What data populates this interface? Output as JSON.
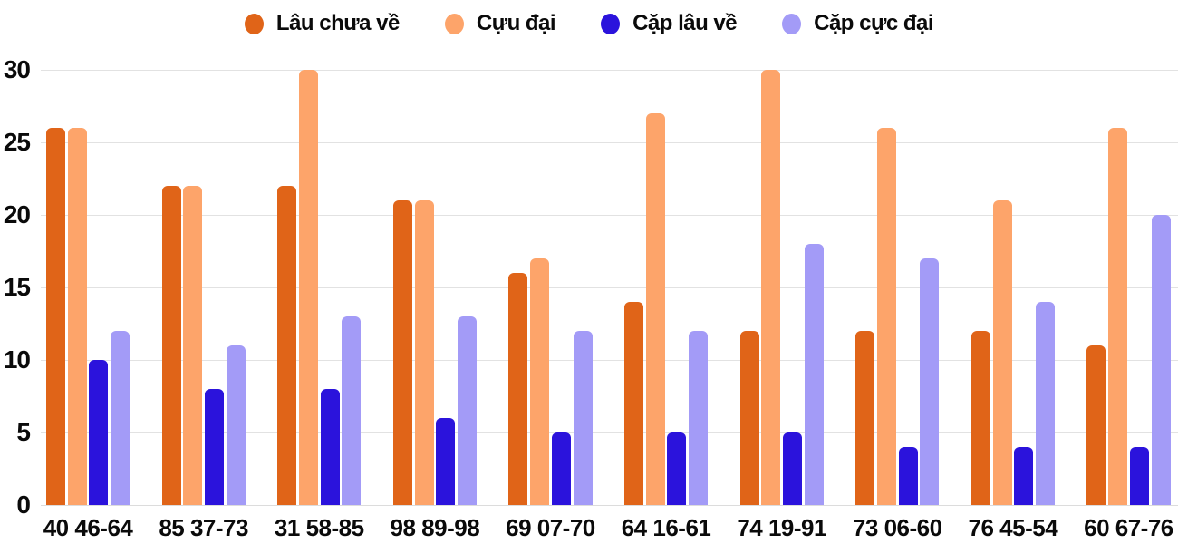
{
  "chart_data": {
    "type": "bar",
    "title": "",
    "categories": [
      "40 46-64",
      "85 37-73",
      "31 58-85",
      "98 89-98",
      "69 07-70",
      "64 16-61",
      "74 19-91",
      "73 06-60",
      "76 45-54",
      "60 67-76"
    ],
    "series": [
      {
        "name": "Lâu chưa về",
        "color": "#E06418",
        "values": [
          26,
          22,
          22,
          21,
          16,
          14,
          12,
          12,
          12,
          11
        ]
      },
      {
        "name": "Cựu đại",
        "color": "#FDA46A",
        "values": [
          26,
          22,
          30,
          21,
          17,
          27,
          30,
          26,
          21,
          26
        ]
      },
      {
        "name": "Cặp lâu về",
        "color": "#2B13DC",
        "values": [
          10,
          8,
          8,
          6,
          5,
          5,
          5,
          4,
          4,
          4
        ]
      },
      {
        "name": "Cặp cực đại",
        "color": "#A39BF7",
        "values": [
          12,
          11,
          13,
          13,
          12,
          12,
          18,
          17,
          14,
          20
        ]
      }
    ],
    "xlabel": "",
    "ylabel": "",
    "ylim": [
      0,
      30
    ],
    "y_ticks": [
      0,
      5,
      10,
      15,
      20,
      25,
      30
    ],
    "grid": true,
    "legend_position": "top",
    "background": "#ffffff",
    "grid_color": "#e2e2e2",
    "axis_text_color": "#0a0a0a"
  }
}
